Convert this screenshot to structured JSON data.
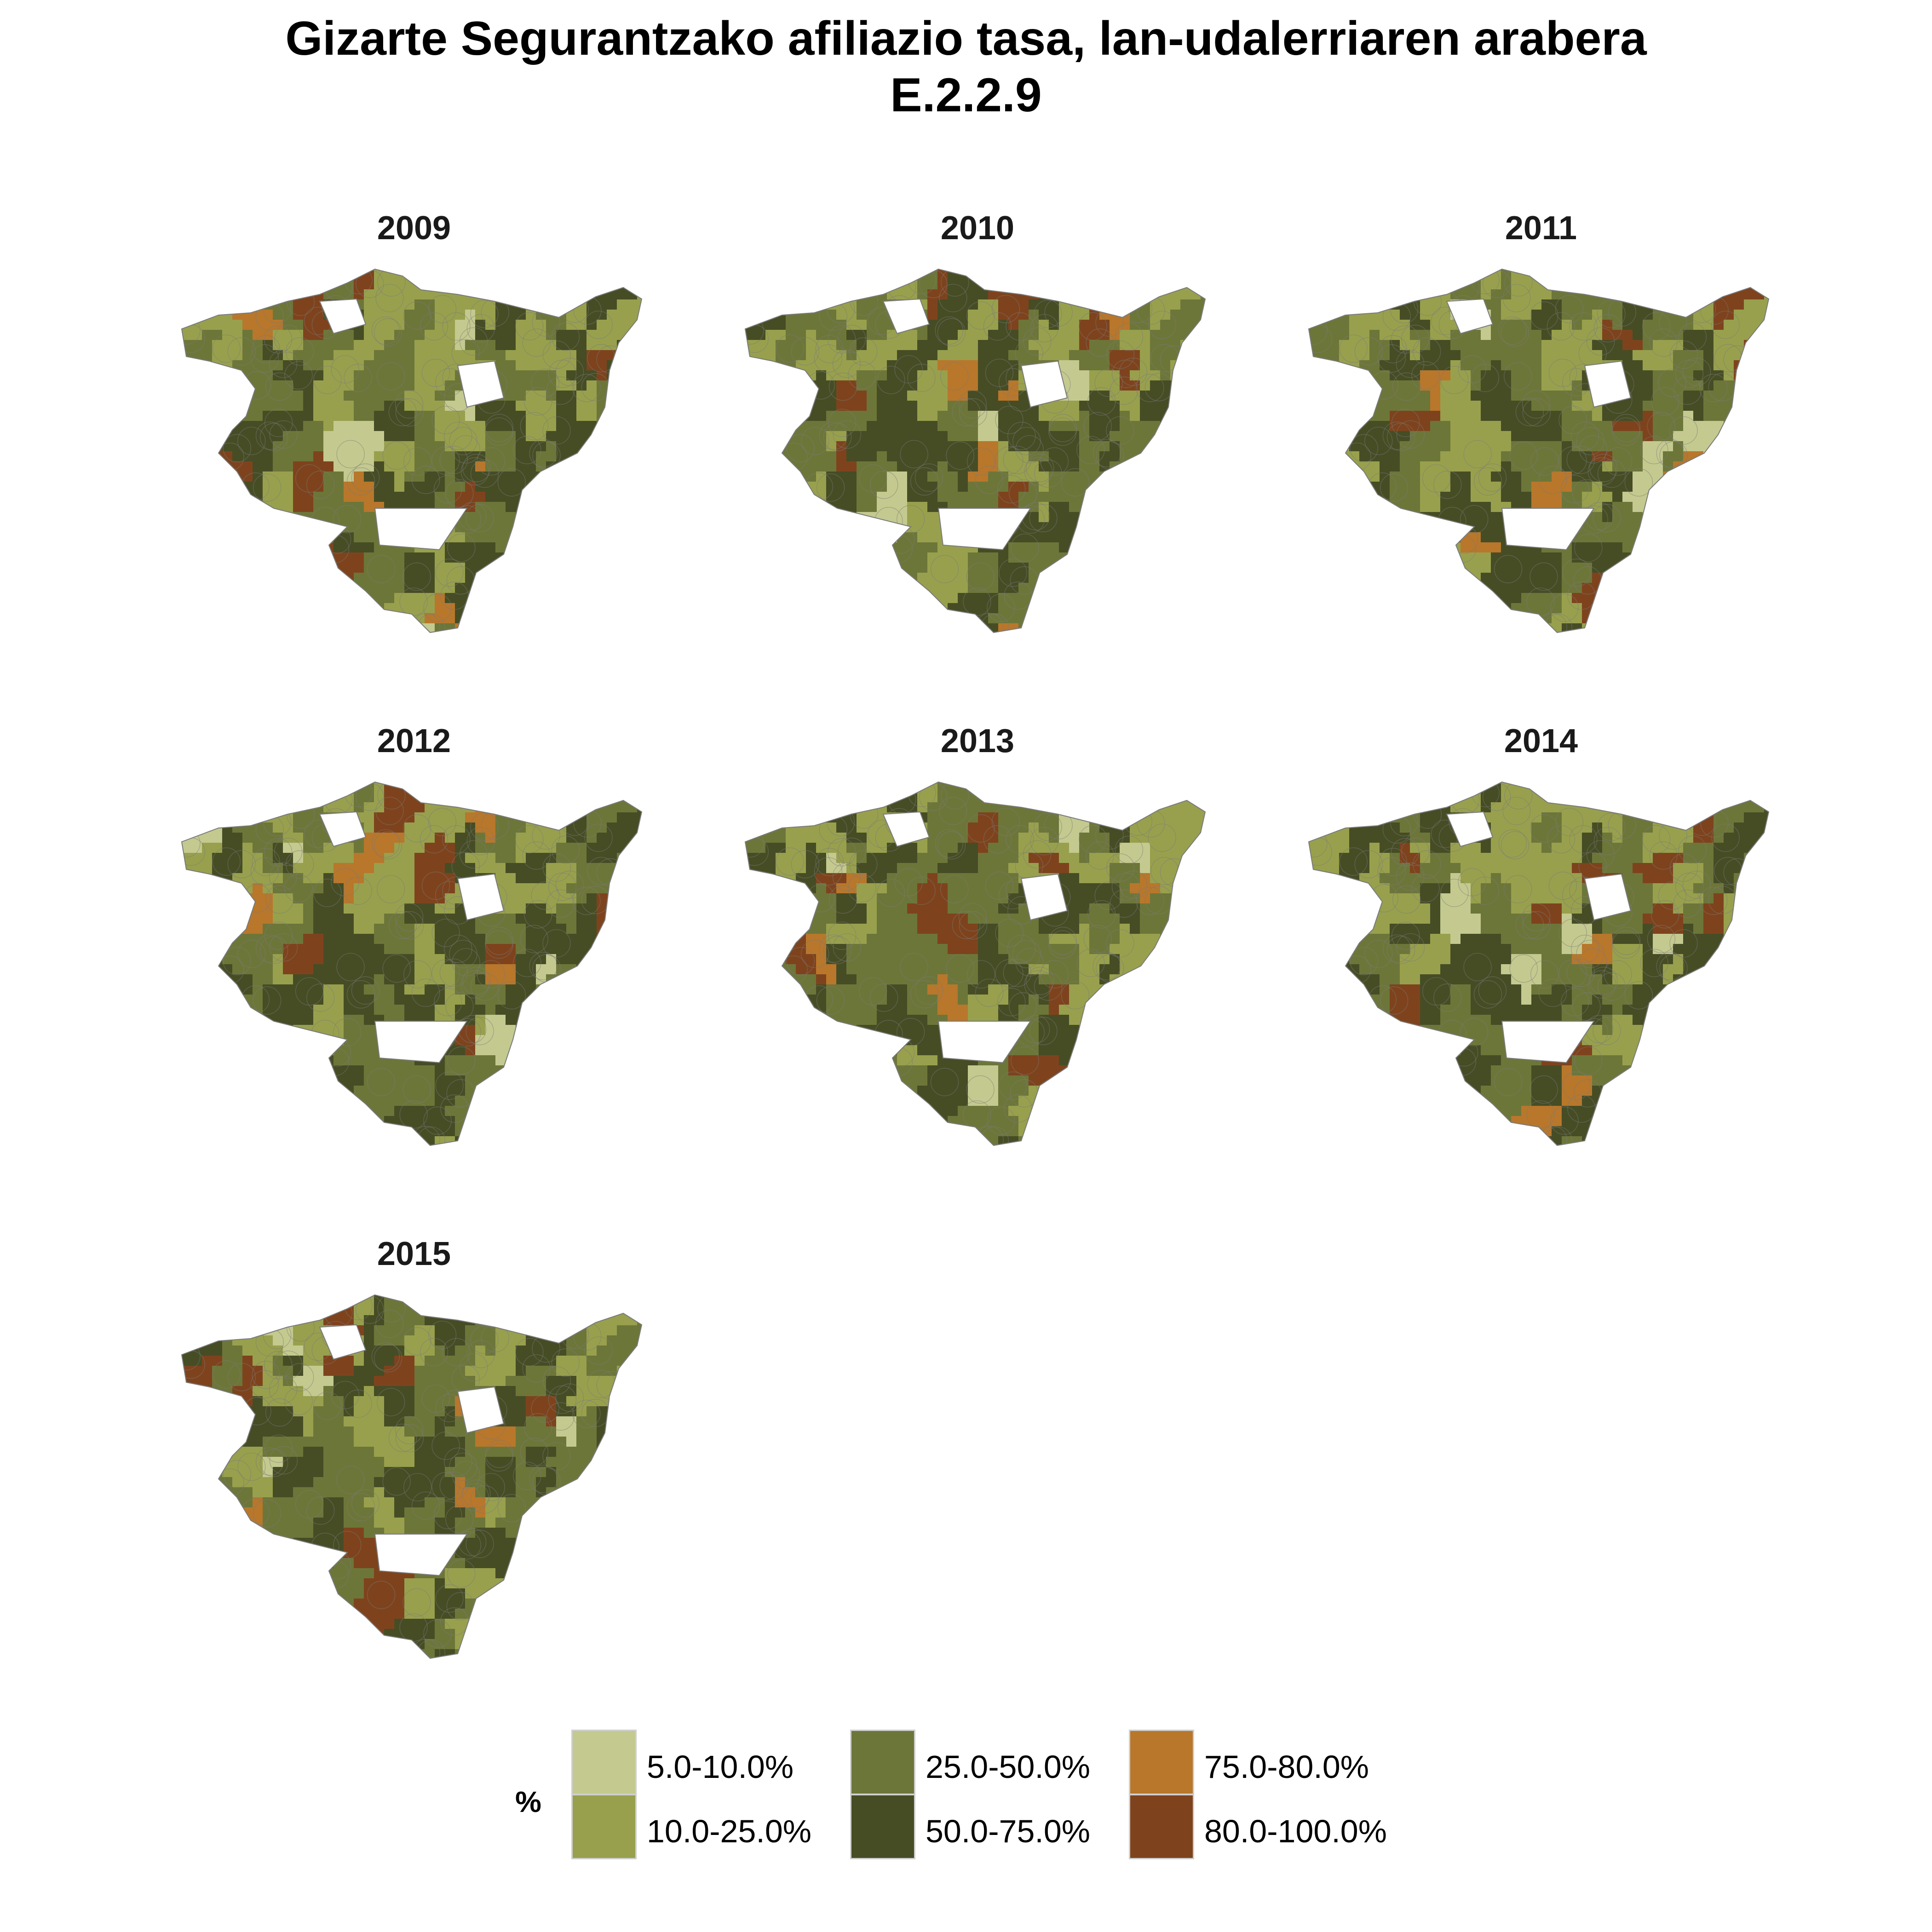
{
  "title": "Gizarte Segurantzako afiliazio tasa, lan-udalerriaren arabera",
  "subtitle": "E.2.2.9",
  "panels": [
    {
      "label": "2009",
      "variant": 0
    },
    {
      "label": "2010",
      "variant": 1
    },
    {
      "label": "2011",
      "variant": 2
    },
    {
      "label": "2012",
      "variant": 3
    },
    {
      "label": "2013",
      "variant": 4
    },
    {
      "label": "2014",
      "variant": 5
    },
    {
      "label": "2015",
      "variant": 6
    }
  ],
  "legend": {
    "title": "%",
    "items": [
      {
        "label": "5.0-10.0%",
        "color": "#c4c98f"
      },
      {
        "label": "10.0-25.0%",
        "color": "#98a04d"
      },
      {
        "label": "25.0-50.0%",
        "color": "#6d7639"
      },
      {
        "label": "50.0-75.0%",
        "color": "#464d25"
      },
      {
        "label": "75.0-80.0%",
        "color": "#b8772b"
      },
      {
        "label": "80.0-100.0%",
        "color": "#7e431d"
      }
    ]
  },
  "colors": {
    "no_data": "#ffffff",
    "border": "#7a7a7a"
  }
}
